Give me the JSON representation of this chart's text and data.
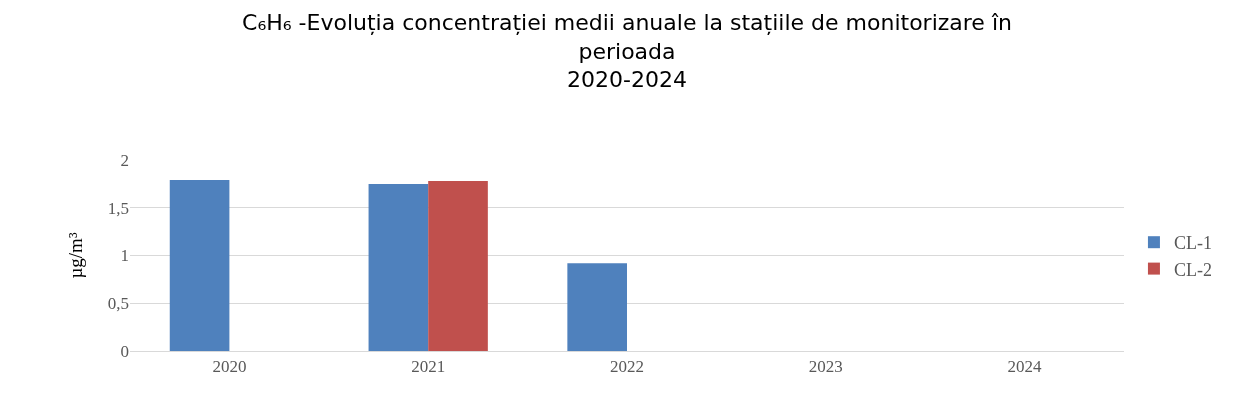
{
  "chart_data": {
    "type": "bar",
    "title": "C₆H₆ -Evoluția concentrației medii anuale la stațiile de monitorizare în\nperioada\n2020-2024",
    "ylabel": "µg/m³",
    "categories": [
      "2020",
      "2021",
      "2022",
      "2023",
      "2024"
    ],
    "series": [
      {
        "name": "CL-1",
        "color": "#4f81bd",
        "values": [
          1.79,
          1.75,
          0.92,
          null,
          null
        ]
      },
      {
        "name": "CL-2",
        "color": "#c0504d",
        "values": [
          null,
          1.78,
          null,
          null,
          null
        ]
      }
    ],
    "ylim": [
      0,
      2
    ],
    "yticks": [
      0,
      {
        "value": 0.5,
        "label": "0,5"
      },
      1,
      {
        "value": 1.5,
        "label": "1,5"
      },
      2
    ],
    "grid": "y",
    "legend": "right"
  }
}
